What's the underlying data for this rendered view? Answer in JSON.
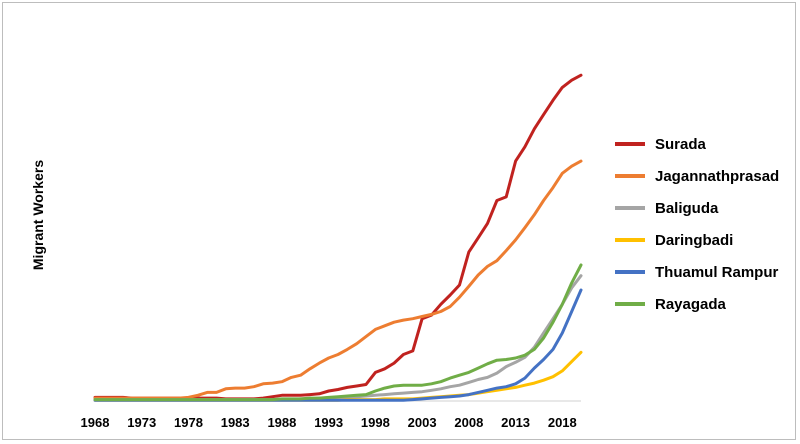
{
  "chart_data": {
    "type": "line",
    "title": "",
    "xlabel": "",
    "ylabel": "Migrant Workers",
    "x": [
      1968,
      1969,
      1970,
      1971,
      1972,
      1973,
      1974,
      1975,
      1976,
      1977,
      1978,
      1979,
      1980,
      1981,
      1982,
      1983,
      1984,
      1985,
      1986,
      1987,
      1988,
      1989,
      1990,
      1991,
      1992,
      1993,
      1994,
      1995,
      1996,
      1997,
      1998,
      1999,
      2000,
      2001,
      2002,
      2003,
      2004,
      2005,
      2006,
      2007,
      2008,
      2009,
      2010,
      2011,
      2012,
      2013,
      2014,
      2015,
      2016,
      2017,
      2018,
      2019,
      2020
    ],
    "xlim": [
      1968,
      2020
    ],
    "xticks": [
      1968,
      1973,
      1978,
      1983,
      1988,
      1993,
      1998,
      2003,
      2008,
      2013,
      2018
    ],
    "ylim": [
      0,
      500
    ],
    "y_ticks_visible": false,
    "grid": false,
    "legend_position": "right",
    "series": [
      {
        "name": "Surada",
        "color": "#c0221f",
        "values": [
          5,
          5,
          5,
          5,
          4,
          4,
          4,
          4,
          4,
          4,
          4,
          4,
          4,
          4,
          3,
          3,
          3,
          3,
          4,
          6,
          8,
          8,
          8,
          9,
          10,
          14,
          16,
          19,
          21,
          23,
          40,
          45,
          53,
          65,
          70,
          115,
          120,
          135,
          148,
          162,
          208,
          228,
          248,
          280,
          285,
          335,
          355,
          380,
          400,
          420,
          438,
          448,
          455
        ]
      },
      {
        "name": "Jagannathprasad",
        "color": "#ed7d31",
        "values": [
          4,
          4,
          4,
          4,
          4,
          4,
          4,
          4,
          4,
          4,
          5,
          8,
          12,
          12,
          17,
          18,
          18,
          20,
          24,
          25,
          27,
          33,
          36,
          45,
          53,
          60,
          65,
          72,
          80,
          90,
          100,
          105,
          110,
          113,
          115,
          118,
          121,
          125,
          132,
          145,
          160,
          176,
          188,
          196,
          210,
          225,
          242,
          260,
          280,
          298,
          318,
          328,
          335
        ]
      },
      {
        "name": "Baliguda",
        "color": "#a5a5a5",
        "values": [
          2,
          2,
          2,
          2,
          2,
          2,
          2,
          2,
          2,
          2,
          2,
          2,
          2,
          2,
          2,
          2,
          2,
          2,
          2,
          2,
          2,
          2,
          3,
          3,
          4,
          4,
          5,
          5,
          6,
          7,
          8,
          9,
          10,
          11,
          12,
          13,
          15,
          17,
          20,
          22,
          26,
          30,
          33,
          39,
          48,
          54,
          61,
          75,
          95,
          115,
          135,
          158,
          175
        ]
      },
      {
        "name": "Daringbadi",
        "color": "#ffc000",
        "values": [
          1,
          1,
          1,
          1,
          1,
          1,
          1,
          1,
          1,
          1,
          1,
          1,
          1,
          1,
          1,
          1,
          1,
          1,
          1,
          1,
          1,
          1,
          1,
          1,
          1,
          1,
          1,
          2,
          2,
          2,
          2,
          3,
          3,
          3,
          3,
          4,
          5,
          6,
          7,
          8,
          9,
          11,
          13,
          15,
          17,
          19,
          22,
          25,
          29,
          34,
          42,
          55,
          68
        ]
      },
      {
        "name": "Thuamul Rampur",
        "color": "#4472c4",
        "values": [
          1,
          1,
          1,
          1,
          1,
          1,
          1,
          1,
          1,
          1,
          1,
          1,
          1,
          1,
          1,
          1,
          1,
          1,
          1,
          1,
          1,
          1,
          1,
          1,
          1,
          1,
          1,
          1,
          1,
          1,
          1,
          1,
          1,
          1,
          2,
          3,
          4,
          5,
          6,
          7,
          9,
          12,
          15,
          18,
          20,
          24,
          32,
          46,
          58,
          72,
          95,
          125,
          155
        ]
      },
      {
        "name": "Rayagada",
        "color": "#70ad47",
        "values": [
          2,
          2,
          2,
          2,
          2,
          2,
          2,
          2,
          2,
          2,
          2,
          2,
          2,
          2,
          2,
          2,
          2,
          2,
          2,
          2,
          3,
          3,
          3,
          4,
          4,
          5,
          6,
          7,
          8,
          9,
          14,
          18,
          21,
          22,
          22,
          22,
          24,
          27,
          32,
          36,
          40,
          46,
          52,
          57,
          58,
          60,
          64,
          72,
          88,
          110,
          135,
          165,
          190
        ]
      }
    ]
  }
}
